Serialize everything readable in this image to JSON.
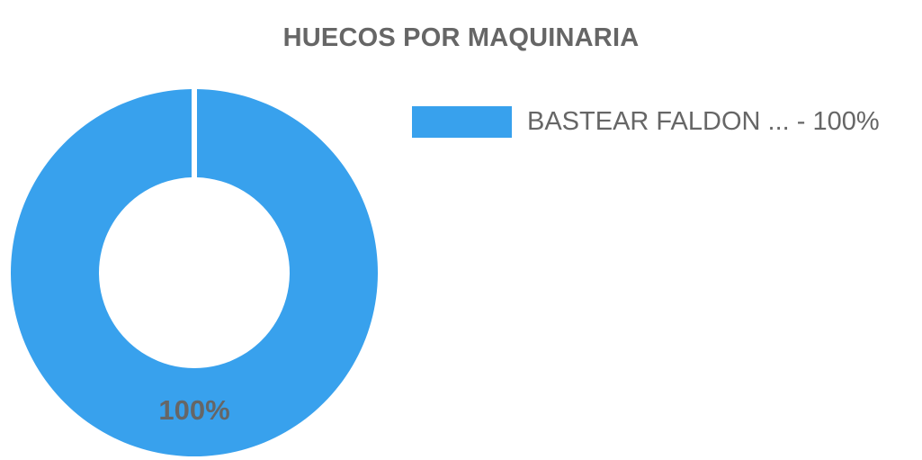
{
  "chart_data": {
    "type": "pie",
    "title": "HUECOS POR MAQUINARIA",
    "slices": [
      {
        "label": "BASTEAR FALDON ...",
        "value": 100,
        "data_label": "100%",
        "legend_text": "BASTEAR FALDON ... - 100%",
        "color": "#38a1ed"
      }
    ],
    "donut": true,
    "legend_position": "right",
    "label_color": "#666666"
  }
}
